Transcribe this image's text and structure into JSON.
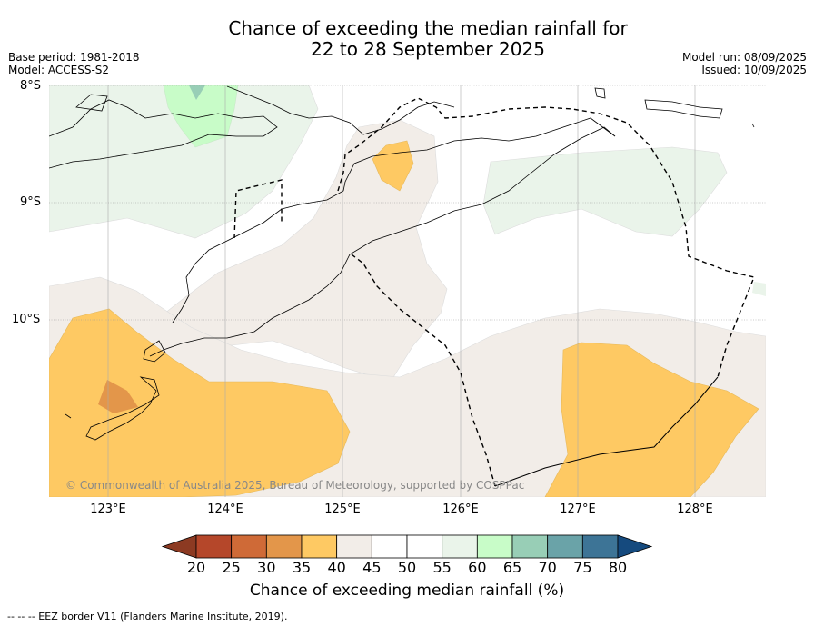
{
  "title_line1": "Chance of exceeding the median rainfall for",
  "title_line2": "22 to 28 September 2025",
  "meta_left": {
    "base_period": "Base period: 1981-2018",
    "model": "Model: ACCESS-S2"
  },
  "meta_right": {
    "model_run": "Model run: 08/09/2025",
    "issued": "Issued: 10/09/2025"
  },
  "lat_labels": [
    "8°S",
    "9°S",
    "10°S"
  ],
  "lon_labels": [
    "123°E",
    "124°E",
    "125°E",
    "126°E",
    "127°E",
    "128°E"
  ],
  "copyright": "© Commonwealth of Australia 2025, Bureau of Meteorology, supported by COSPPac",
  "colorbar": {
    "ticks": [
      "20",
      "25",
      "30",
      "35",
      "40",
      "45",
      "50",
      "55",
      "60",
      "65",
      "70",
      "75",
      "80"
    ],
    "colors": [
      "#8c3a22",
      "#b5472a",
      "#cf6a37",
      "#e3964a",
      "#fec963",
      "#f2ede8",
      "#ffffff",
      "#ffffff",
      "#eaf4ea",
      "#c8fcc8",
      "#98ceb6",
      "#6aa3a8",
      "#3d7496",
      "#154a7e"
    ],
    "label": "Chance of exceeding median rainfall (%)"
  },
  "footer": "--  --  -- EEZ border V11 (Flanders Marine Institute, 2019)."
}
